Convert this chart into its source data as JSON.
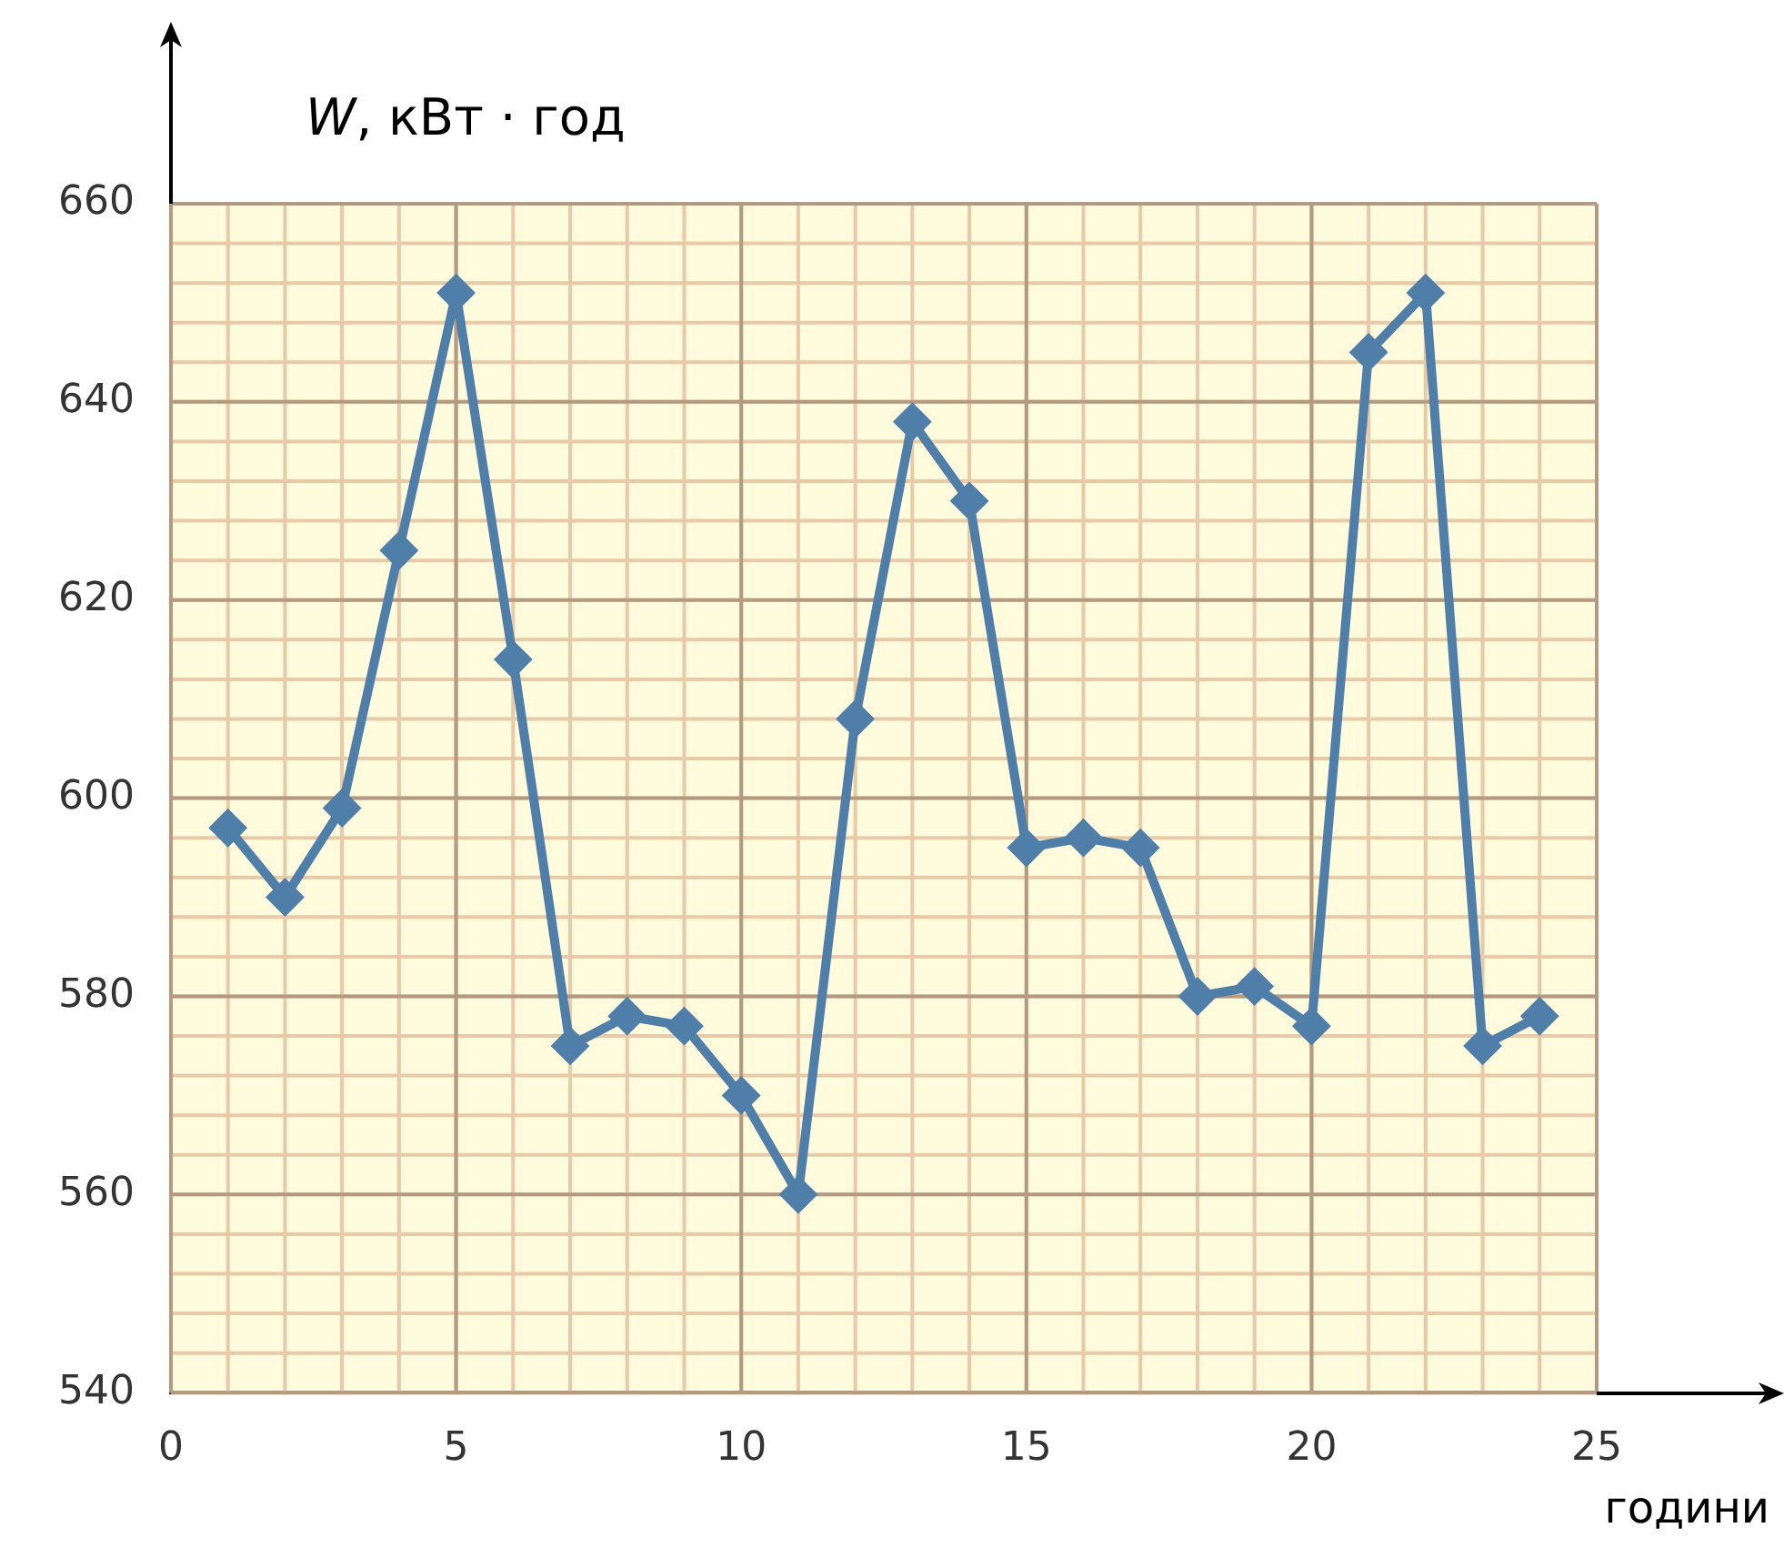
{
  "chart_data": {
    "type": "line",
    "xlabel": "години",
    "ylabel": "W, кВт · год",
    "x": [
      1,
      2,
      3,
      4,
      5,
      6,
      7,
      8,
      9,
      10,
      11,
      12,
      13,
      14,
      15,
      16,
      17,
      18,
      19,
      20,
      21,
      22,
      23,
      24
    ],
    "series": [
      {
        "color": "#4f7fa8",
        "values": [
          597,
          590,
          599,
          625,
          651,
          614,
          575,
          578,
          577,
          570,
          560,
          608,
          638,
          630,
          595,
          596,
          595,
          580,
          581,
          577,
          645,
          651,
          575,
          578
        ]
      }
    ],
    "xlim": [
      0,
      25
    ],
    "xticks": [
      0,
      5,
      10,
      15,
      20,
      25
    ],
    "ylim": [
      540,
      660
    ],
    "yticks": [
      540,
      560,
      580,
      600,
      620,
      640,
      660
    ],
    "grid": true,
    "legend": false,
    "marker": "diamond",
    "line_style": "solid"
  }
}
